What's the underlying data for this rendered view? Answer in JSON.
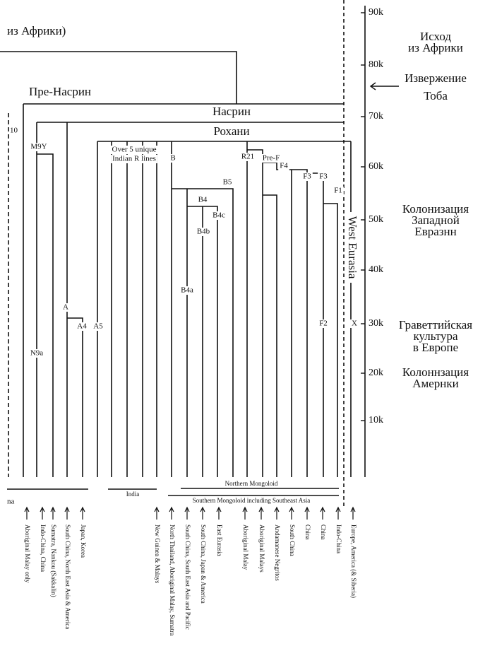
{
  "left_header": "из Африки)",
  "fragments": [
    "10",
    "na"
  ],
  "branches": [
    "Пре-Насрин",
    "Насрин",
    "Рохани"
  ],
  "axis": {
    "ticks": [
      "90k",
      "80k",
      "70k",
      "60k",
      "50k",
      "40k",
      "30k",
      "20k",
      "10k"
    ]
  },
  "annotations": [
    [
      "Исход",
      "из Африки"
    ],
    [
      "Извержение"
    ],
    [
      "Тоба"
    ],
    [
      "Колонизация",
      "Западной",
      "Евразнн"
    ],
    [
      "Граветтийская",
      "культура",
      "в Европе"
    ],
    [
      "Колоннзация",
      "Амернки"
    ]
  ],
  "clades": [
    "M9Y",
    "N9a",
    "A",
    "A4",
    "A5",
    "Over 5 unique",
    "Indian R lines",
    "B",
    "B5",
    "B4",
    "B4c",
    "B4b",
    "B4a",
    "R21",
    "Pre-F",
    "F4",
    "F3",
    "F3",
    "F1",
    "F2",
    "X",
    "West Eurasia"
  ],
  "regions": [
    "India",
    "Northern Mongoloid",
    "Southern Mongoloid including Southeast Asia"
  ],
  "populations": [
    "Aboriginal Malay only",
    "Indo-China, China",
    "Sumatra, Nankou (Sakkalin)",
    "South China, North East Asia & America",
    "Japan, Korea",
    "New Guinea & Malays",
    "North Thailand, Aboriginal Malay, Sumatra",
    "South China, South East Asia and Pacific",
    "South China, Japan & America",
    "East Eurasia",
    "Aboriginal Malay",
    "Aboriginal Malays",
    "Andamanese Negritos",
    "South China",
    "China",
    "China",
    "Indo-China",
    "Europe, America (& Siberia)"
  ]
}
